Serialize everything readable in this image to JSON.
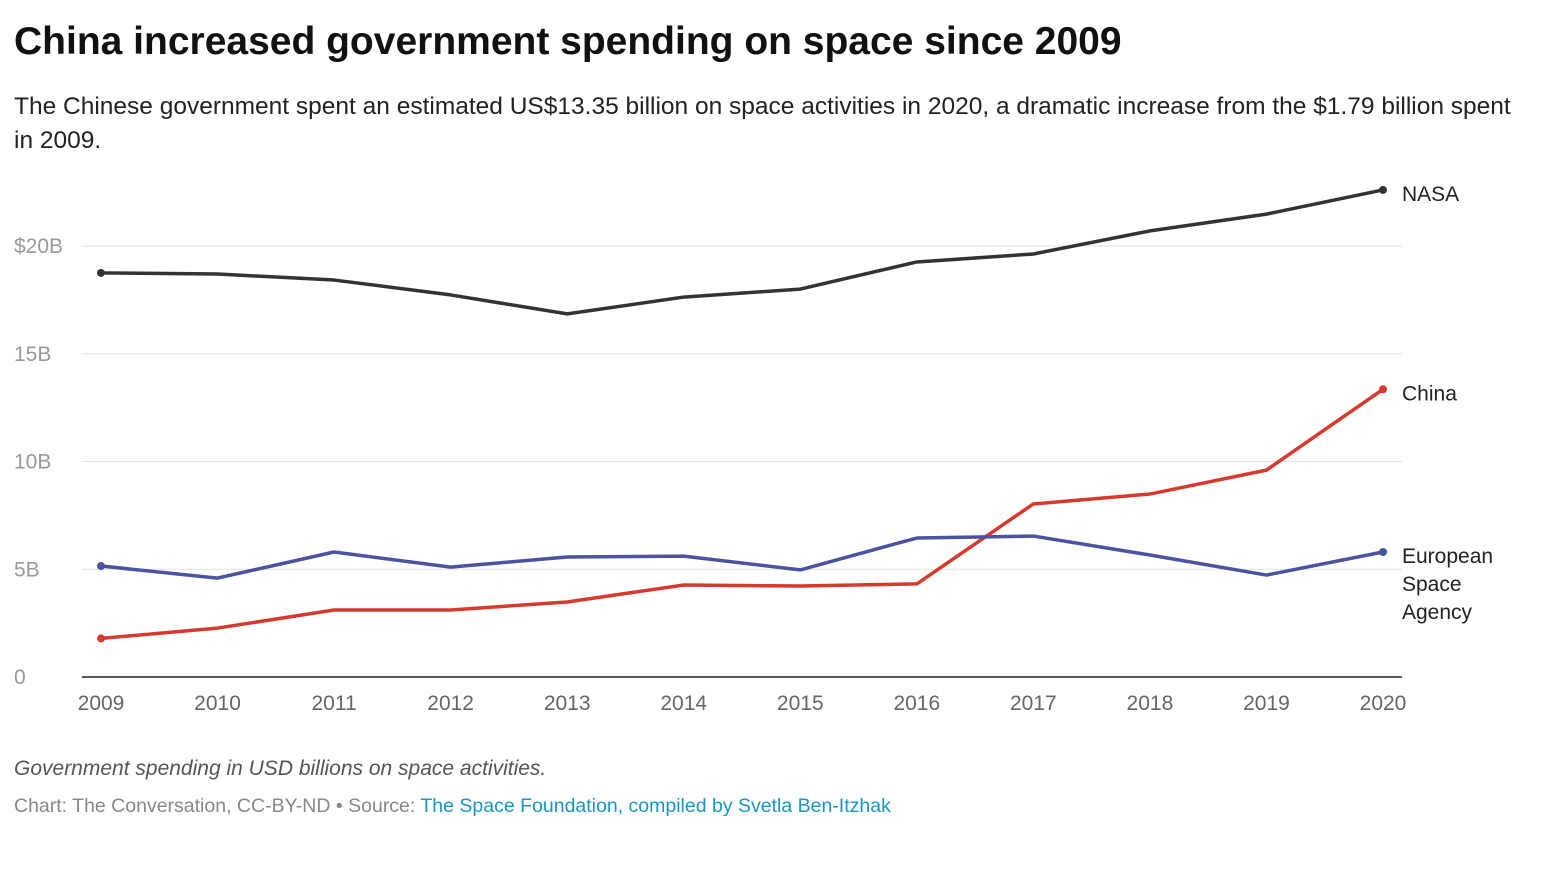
{
  "chart_data": {
    "type": "line",
    "title": "China increased government spending on space since 2009",
    "subtitle": "The Chinese government spent an estimated US$13.35 billion on space activities in 2020, a dramatic increase from the $1.79 billion spent in 2009.",
    "xlabel": "",
    "ylabel": "",
    "x": [
      "2009",
      "2010",
      "2011",
      "2012",
      "2013",
      "2014",
      "2015",
      "2016",
      "2017",
      "2018",
      "2019",
      "2020"
    ],
    "ylim": [
      0,
      22.6
    ],
    "yticks": [
      0,
      5,
      10,
      15,
      20
    ],
    "ytick_labels": [
      "0",
      "5B",
      "10B",
      "15B",
      "$20B"
    ],
    "grid": true,
    "series": [
      {
        "name": "NASA",
        "label_lines": [
          "NASA"
        ],
        "color": "#333333",
        "values": [
          18.75,
          18.7,
          18.42,
          17.73,
          16.85,
          17.63,
          18.0,
          19.26,
          19.63,
          20.7,
          21.48,
          22.6
        ]
      },
      {
        "name": "China",
        "label_lines": [
          "China"
        ],
        "color": "#d63a2f",
        "values": [
          1.79,
          2.27,
          3.11,
          3.11,
          3.48,
          4.27,
          4.22,
          4.32,
          8.03,
          8.49,
          9.6,
          13.35
        ]
      },
      {
        "name": "European Space Agency",
        "label_lines": [
          "European",
          "Space",
          "Agency"
        ],
        "color": "#4b53a1",
        "values": [
          5.15,
          4.59,
          5.8,
          5.1,
          5.57,
          5.61,
          4.97,
          6.45,
          6.54,
          5.66,
          4.73,
          5.8
        ]
      }
    ],
    "legend": "direct-labels-right"
  },
  "note": "Government spending in USD billions on space activities.",
  "source": {
    "prefix": "Chart: The Conversation, CC-BY-ND • Source: ",
    "link_text": "The Space Foundation, compiled by Svetla Ben-Itzhak"
  }
}
